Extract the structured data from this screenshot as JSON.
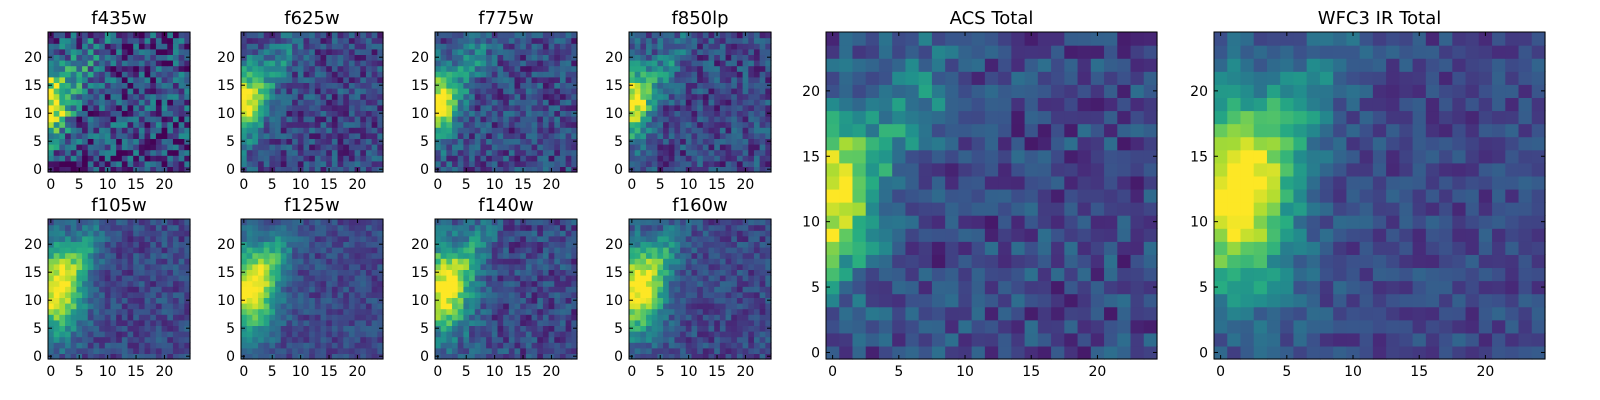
{
  "chart_data": [
    {
      "type": "heatmap",
      "title": "f435w",
      "x_ticks": [
        "0",
        "5",
        "10",
        "15",
        "20"
      ],
      "y_ticks": [
        "0",
        "5",
        "10",
        "15",
        "20"
      ],
      "xlim": [
        -0.5,
        24.5
      ],
      "ylim": [
        -0.5,
        24.5
      ],
      "grid": 25,
      "colormap": "viridis",
      "bright_spot": [
        0,
        12
      ],
      "stretch": "short",
      "noise": 0.55
    },
    {
      "type": "heatmap",
      "title": "f625w",
      "x_ticks": [
        "0",
        "5",
        "10",
        "15",
        "20"
      ],
      "y_ticks": [
        "0",
        "5",
        "10",
        "15",
        "20"
      ],
      "xlim": [
        -0.5,
        24.5
      ],
      "ylim": [
        -0.5,
        24.5
      ],
      "grid": 25,
      "colormap": "viridis",
      "bright_spot": [
        0,
        12
      ],
      "stretch": "short",
      "noise": 0.35
    },
    {
      "type": "heatmap",
      "title": "f775w",
      "x_ticks": [
        "0",
        "5",
        "10",
        "15",
        "20"
      ],
      "y_ticks": [
        "0",
        "5",
        "10",
        "15",
        "20"
      ],
      "xlim": [
        -0.5,
        24.5
      ],
      "ylim": [
        -0.5,
        24.5
      ],
      "grid": 25,
      "colormap": "viridis",
      "bright_spot": [
        0,
        12
      ],
      "stretch": "short",
      "noise": 0.35
    },
    {
      "type": "heatmap",
      "title": "f850lp",
      "x_ticks": [
        "0",
        "5",
        "10",
        "15",
        "20"
      ],
      "y_ticks": [
        "0",
        "5",
        "10",
        "15",
        "20"
      ],
      "xlim": [
        -0.5,
        24.5
      ],
      "ylim": [
        -0.5,
        24.5
      ],
      "grid": 25,
      "colormap": "viridis",
      "bright_spot": [
        0,
        12
      ],
      "stretch": "short",
      "noise": 0.35
    },
    {
      "type": "heatmap",
      "title": "f105w",
      "x_ticks": [
        "0",
        "5",
        "10",
        "15",
        "20"
      ],
      "y_ticks": [
        "0",
        "5",
        "10",
        "15",
        "20"
      ],
      "xlim": [
        -0.5,
        24.5
      ],
      "ylim": [
        -0.5,
        24.5
      ],
      "grid": 25,
      "colormap": "viridis",
      "bright_spot": [
        1,
        12
      ],
      "stretch": "wide",
      "noise": 0.25
    },
    {
      "type": "heatmap",
      "title": "f125w",
      "x_ticks": [
        "0",
        "5",
        "10",
        "15",
        "20"
      ],
      "y_ticks": [
        "0",
        "5",
        "10",
        "15",
        "20"
      ],
      "xlim": [
        -0.5,
        24.5
      ],
      "ylim": [
        -0.5,
        24.5
      ],
      "grid": 25,
      "colormap": "viridis",
      "bright_spot": [
        1,
        12
      ],
      "stretch": "wide",
      "noise": 0.22
    },
    {
      "type": "heatmap",
      "title": "f140w",
      "x_ticks": [
        "0",
        "5",
        "10",
        "15",
        "20"
      ],
      "y_ticks": [
        "0",
        "5",
        "10",
        "15",
        "20"
      ],
      "xlim": [
        -0.5,
        24.5
      ],
      "ylim": [
        -0.5,
        24.5
      ],
      "grid": 25,
      "colormap": "viridis",
      "bright_spot": [
        1,
        12
      ],
      "stretch": "wide",
      "noise": 0.3
    },
    {
      "type": "heatmap",
      "title": "f160w",
      "x_ticks": [
        "0",
        "5",
        "10",
        "15",
        "20"
      ],
      "y_ticks": [
        "0",
        "5",
        "10",
        "15",
        "20"
      ],
      "xlim": [
        -0.5,
        24.5
      ],
      "ylim": [
        -0.5,
        24.5
      ],
      "grid": 25,
      "colormap": "viridis",
      "bright_spot": [
        1,
        12
      ],
      "stretch": "wide",
      "noise": 0.25
    },
    {
      "type": "heatmap",
      "title": "ACS Total",
      "x_ticks": [
        "0",
        "5",
        "10",
        "15",
        "20"
      ],
      "y_ticks": [
        "0",
        "5",
        "10",
        "15",
        "20"
      ],
      "xlim": [
        -0.5,
        24.5
      ],
      "ylim": [
        -0.5,
        24.5
      ],
      "grid": 25,
      "colormap": "viridis",
      "bright_spot": [
        0,
        12
      ],
      "stretch": "short",
      "noise": 0.3
    },
    {
      "type": "heatmap",
      "title": "WFC3 IR Total",
      "x_ticks": [
        "0",
        "5",
        "10",
        "15",
        "20"
      ],
      "y_ticks": [
        "0",
        "5",
        "10",
        "15",
        "20"
      ],
      "xlim": [
        -0.5,
        24.5
      ],
      "ylim": [
        -0.5,
        24.5
      ],
      "grid": 25,
      "colormap": "viridis",
      "bright_spot": [
        1,
        12
      ],
      "stretch": "wide",
      "noise": 0.22
    }
  ]
}
